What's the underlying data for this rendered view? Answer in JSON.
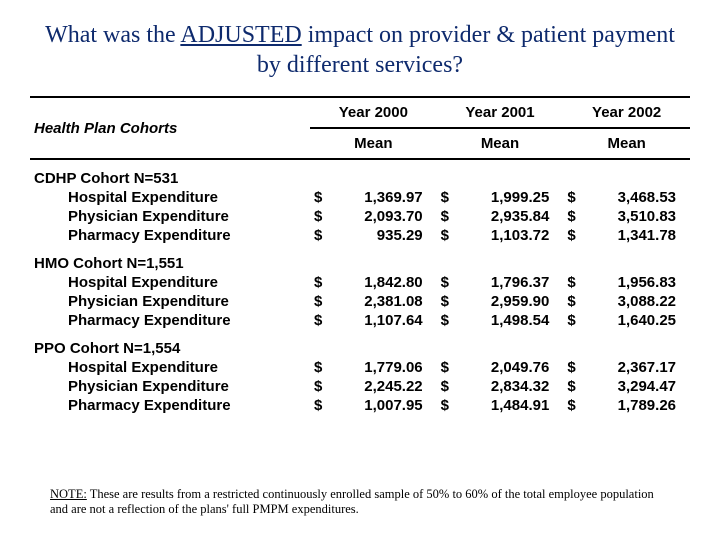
{
  "title_pre": "What was the ",
  "title_mid": "ADJUSTED",
  "title_post": " impact on provider & patient payment by different services?",
  "header_label": "Health Plan Cohorts",
  "years": [
    "Year 2000",
    "Year 2001",
    "Year 2002"
  ],
  "mean_label": "Mean",
  "cohorts": [
    {
      "name": "CDHP Cohort N=531",
      "rows": [
        {
          "label": "Hospital Expenditure",
          "v": [
            "1,369.97",
            "1,999.25",
            "3,468.53"
          ]
        },
        {
          "label": "Physician Expenditure",
          "v": [
            "2,093.70",
            "2,935.84",
            "3,510.83"
          ]
        },
        {
          "label": "Pharmacy Expenditure",
          "v": [
            "935.29",
            "1,103.72",
            "1,341.78"
          ]
        }
      ]
    },
    {
      "name": "HMO Cohort N=1,551",
      "rows": [
        {
          "label": "Hospital Expenditure",
          "v": [
            "1,842.80",
            "1,796.37",
            "1,956.83"
          ]
        },
        {
          "label": "Physician Expenditure",
          "v": [
            "2,381.08",
            "2,959.90",
            "3,088.22"
          ]
        },
        {
          "label": "Pharmacy Expenditure",
          "v": [
            "1,107.64",
            "1,498.54",
            "1,640.25"
          ]
        }
      ]
    },
    {
      "name": "PPO Cohort N=1,554",
      "rows": [
        {
          "label": "Hospital Expenditure",
          "v": [
            "1,779.06",
            "2,049.76",
            "2,367.17"
          ]
        },
        {
          "label": "Physician Expenditure",
          "v": [
            "2,245.22",
            "2,834.32",
            "3,294.47"
          ]
        },
        {
          "label": "Pharmacy Expenditure",
          "v": [
            "1,007.95",
            "1,484.91",
            "1,789.26"
          ]
        }
      ]
    }
  ],
  "note_label": "NOTE:",
  "note_text": " These are results from a restricted continuously enrolled sample of 50% to 60% of the total employee population and are not a reflection of the plans' full PMPM expenditures.",
  "currency": "$",
  "colors": {
    "title": "#0e2a6d",
    "text": "#000000",
    "bg": "#ffffff"
  }
}
